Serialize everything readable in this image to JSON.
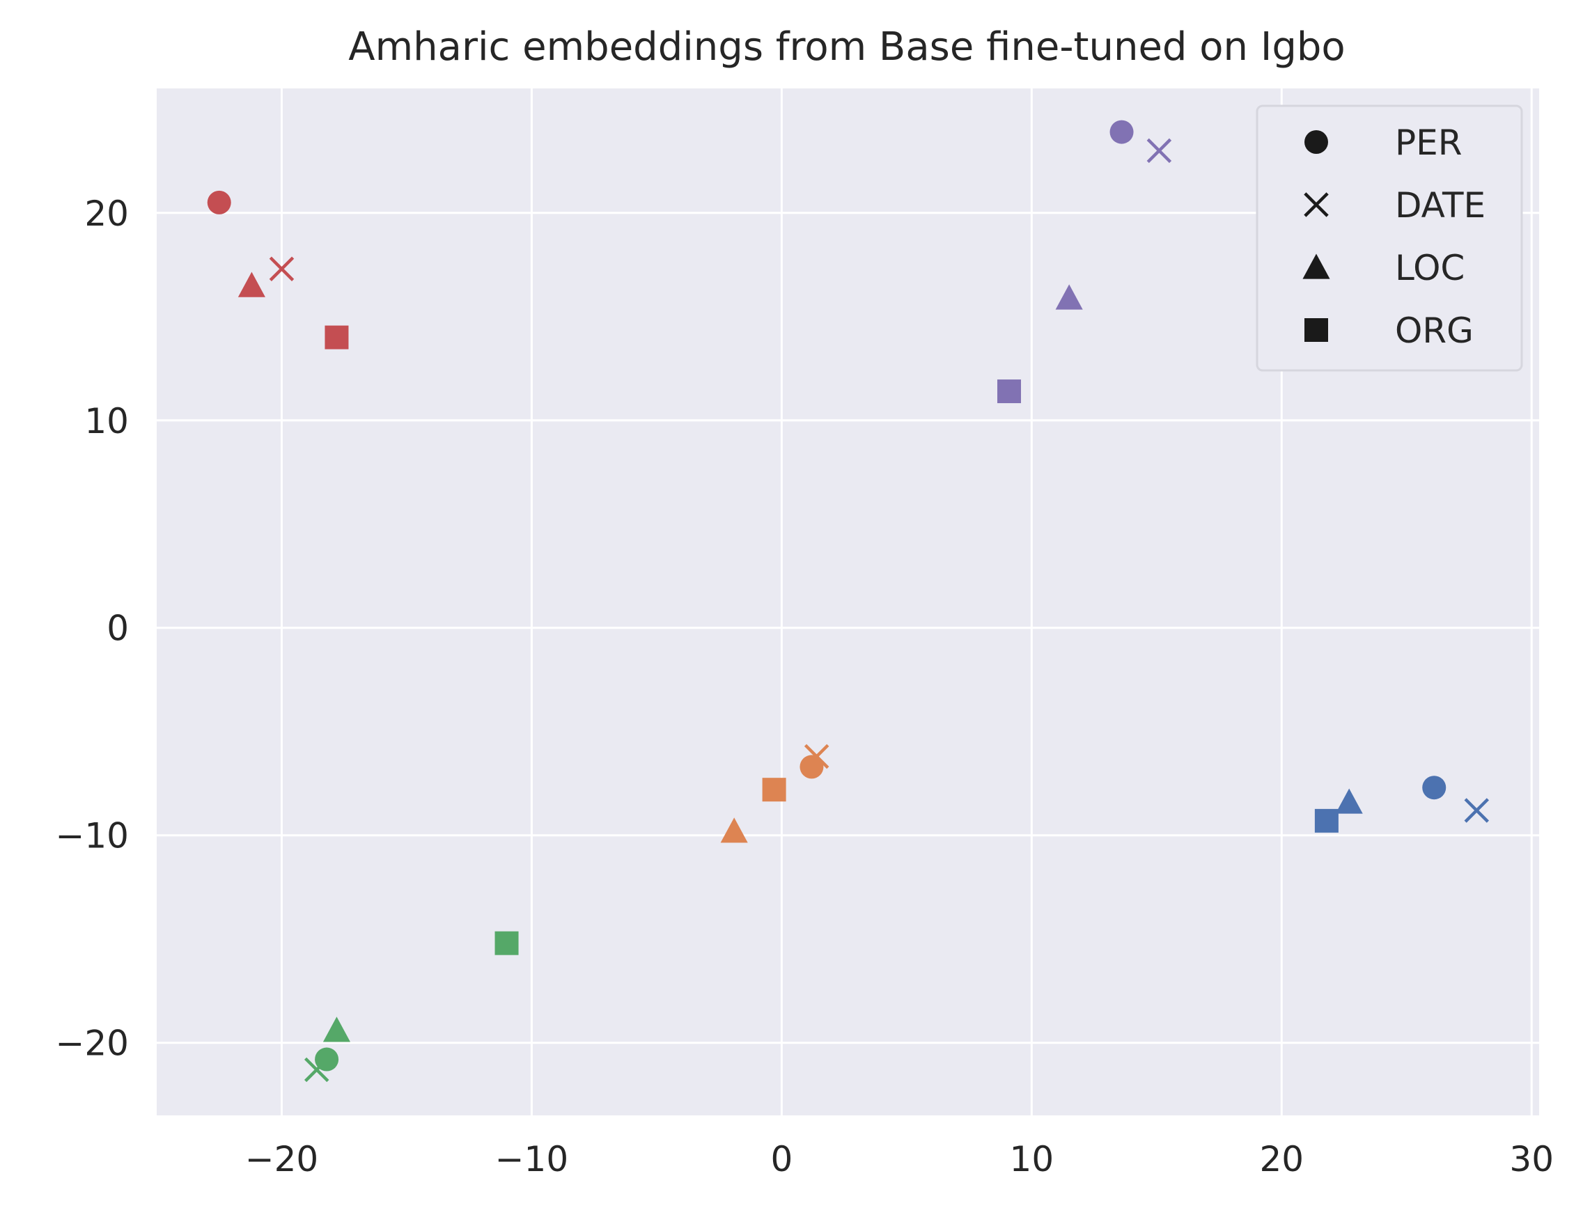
{
  "chart_data": {
    "type": "scatter",
    "title": "Amharic embeddings from Base fine-tuned on Igbo",
    "xlabel": "",
    "ylabel": "",
    "xlim": [
      -25,
      30.3
    ],
    "ylim": [
      -23.5,
      26
    ],
    "xticks": [
      -20,
      -10,
      0,
      10,
      20,
      30
    ],
    "yticks": [
      -20,
      -10,
      0,
      10,
      20
    ],
    "xtick_labels": [
      "−20",
      "−10",
      "0",
      "10",
      "20",
      "30"
    ],
    "ytick_labels": [
      "−20",
      "−10",
      "0",
      "10",
      "20"
    ],
    "grid": true,
    "legend": {
      "placement": "top-right",
      "entries": [
        {
          "label": "PER",
          "marker": "circle"
        },
        {
          "label": "DATE",
          "marker": "x"
        },
        {
          "label": "LOC",
          "marker": "triangle"
        },
        {
          "label": "ORG",
          "marker": "square"
        }
      ]
    },
    "colors": {
      "red": "#c44e52",
      "purple": "#8172b3",
      "orange": "#dd8452",
      "blue": "#4c72b0",
      "green": "#55a868",
      "plot_background": "#eaeaf2",
      "grid": "#ffffff",
      "legend_marker": "#1a1a1a"
    },
    "points": [
      {
        "x": -22.5,
        "y": 20.5,
        "marker": "circle",
        "color": "red"
      },
      {
        "x": -20.0,
        "y": 17.3,
        "marker": "x",
        "color": "red"
      },
      {
        "x": -21.2,
        "y": 16.5,
        "marker": "triangle",
        "color": "red"
      },
      {
        "x": -17.8,
        "y": 14.0,
        "marker": "square",
        "color": "red"
      },
      {
        "x": 13.6,
        "y": 23.9,
        "marker": "circle",
        "color": "purple"
      },
      {
        "x": 15.1,
        "y": 23.0,
        "marker": "x",
        "color": "purple"
      },
      {
        "x": 11.5,
        "y": 15.9,
        "marker": "triangle",
        "color": "purple"
      },
      {
        "x": 9.1,
        "y": 11.4,
        "marker": "square",
        "color": "purple"
      },
      {
        "x": 1.2,
        "y": -6.7,
        "marker": "circle",
        "color": "orange"
      },
      {
        "x": 1.4,
        "y": -6.2,
        "marker": "x",
        "color": "orange"
      },
      {
        "x": -1.9,
        "y": -9.8,
        "marker": "triangle",
        "color": "orange"
      },
      {
        "x": -0.3,
        "y": -7.8,
        "marker": "square",
        "color": "orange"
      },
      {
        "x": 26.1,
        "y": -7.7,
        "marker": "circle",
        "color": "blue"
      },
      {
        "x": 27.8,
        "y": -8.8,
        "marker": "x",
        "color": "blue"
      },
      {
        "x": 22.7,
        "y": -8.4,
        "marker": "triangle",
        "color": "blue"
      },
      {
        "x": 21.8,
        "y": -9.3,
        "marker": "square",
        "color": "blue"
      },
      {
        "x": -18.2,
        "y": -20.8,
        "marker": "circle",
        "color": "green"
      },
      {
        "x": -18.6,
        "y": -21.3,
        "marker": "x",
        "color": "green"
      },
      {
        "x": -17.8,
        "y": -19.4,
        "marker": "triangle",
        "color": "green"
      },
      {
        "x": -11.0,
        "y": -15.2,
        "marker": "square",
        "color": "green"
      }
    ]
  }
}
